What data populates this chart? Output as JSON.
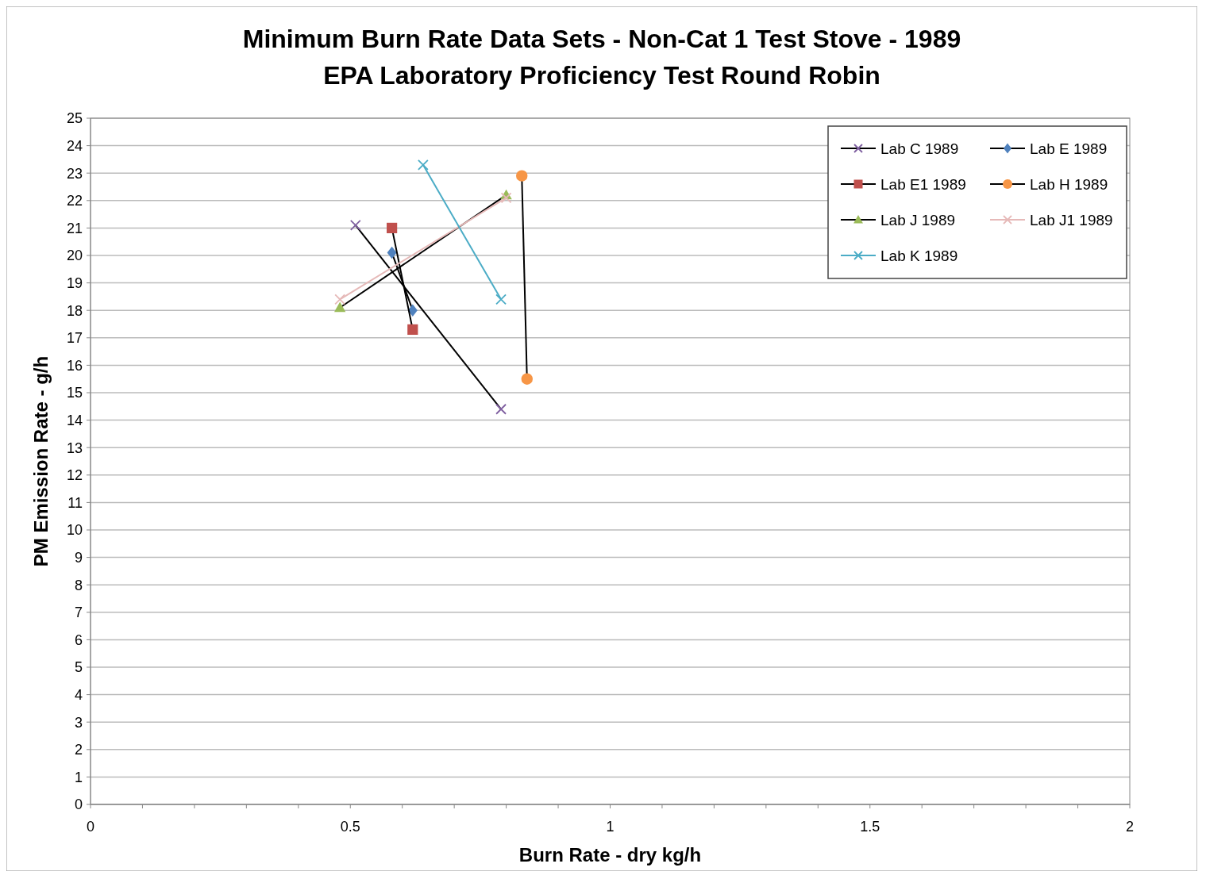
{
  "chart_data": {
    "type": "line",
    "title": "Minimum Burn Rate Data Sets - Non-Cat 1 Test Stove  - 1989 EPA Laboratory Proficiency Test Round Robin",
    "xlabel": "Burn Rate - dry kg/h",
    "ylabel": "PM Emission Rate - g/h",
    "xlim": [
      0,
      2
    ],
    "ylim": [
      0,
      25
    ],
    "xticks": [
      0,
      {
        "value": 0.1,
        "label": null
      },
      {
        "value": 0.2,
        "label": null
      },
      {
        "value": 0.3,
        "label": null
      },
      {
        "value": 0.4,
        "label": null
      },
      0.5,
      {
        "value": 0.6,
        "label": null
      },
      {
        "value": 0.7,
        "label": null
      },
      {
        "value": 0.8,
        "label": null
      },
      {
        "value": 0.9,
        "label": null
      },
      1,
      {
        "value": 1.1,
        "label": null
      },
      {
        "value": 1.2,
        "label": null
      },
      {
        "value": 1.3,
        "label": null
      },
      {
        "value": 1.4,
        "label": null
      },
      1.5,
      {
        "value": 1.6,
        "label": null
      },
      {
        "value": 1.7,
        "label": null
      },
      {
        "value": 1.8,
        "label": null
      },
      {
        "value": 1.9,
        "label": null
      },
      2
    ],
    "yticks": [
      0,
      1,
      2,
      3,
      4,
      5,
      6,
      7,
      8,
      9,
      10,
      11,
      12,
      13,
      14,
      15,
      16,
      17,
      18,
      19,
      20,
      21,
      22,
      23,
      24,
      25
    ],
    "grid": "y",
    "legend": "top right",
    "line_style": "solid",
    "series": [
      {
        "name": "Lab C 1989",
        "color": "#000000",
        "colors": [
          "#7f5fa0",
          "#7f5fa0"
        ],
        "marker": "cross",
        "x": [
          0.51,
          0.79
        ],
        "values": [
          21.1,
          14.4
        ]
      },
      {
        "name": "Lab E 1989",
        "color": "#000000",
        "colors": [
          "#4f81bd",
          "#4f81bd"
        ],
        "marker": "diamond",
        "x": [
          0.58,
          0.62
        ],
        "values": [
          20.1,
          18.0
        ]
      },
      {
        "name": "Lab E1 1989",
        "color": "#000000",
        "colors": [
          "#c0504d",
          "#c0504d"
        ],
        "marker": "square",
        "x": [
          0.58,
          0.62
        ],
        "values": [
          21.0,
          17.3
        ]
      },
      {
        "name": "Lab H 1989",
        "color": "#000000",
        "colors": [
          "#f79646",
          "#f79646"
        ],
        "marker": "circle",
        "x": [
          0.83,
          0.84
        ],
        "values": [
          22.9,
          15.5
        ]
      },
      {
        "name": "Lab J 1989",
        "color": "#000000",
        "colors": [
          "#9bbb59",
          "#9bbb59"
        ],
        "marker": "triangle",
        "x": [
          0.48,
          0.8
        ],
        "values": [
          18.1,
          22.2
        ]
      },
      {
        "name": "Lab J1 1989",
        "color": "#e6b9b8",
        "colors": [
          "#e6b9b8",
          "#e6b9b8"
        ],
        "marker": "cross",
        "x": [
          0.48,
          0.8
        ],
        "values": [
          18.4,
          22.1
        ]
      },
      {
        "name": "Lab K 1989",
        "color": "#4bacc6",
        "colors": [
          "#4bacc6",
          "#4bacc6"
        ],
        "marker": "cross",
        "x": [
          0.64,
          0.79
        ],
        "values": [
          23.3,
          18.4
        ]
      }
    ]
  }
}
